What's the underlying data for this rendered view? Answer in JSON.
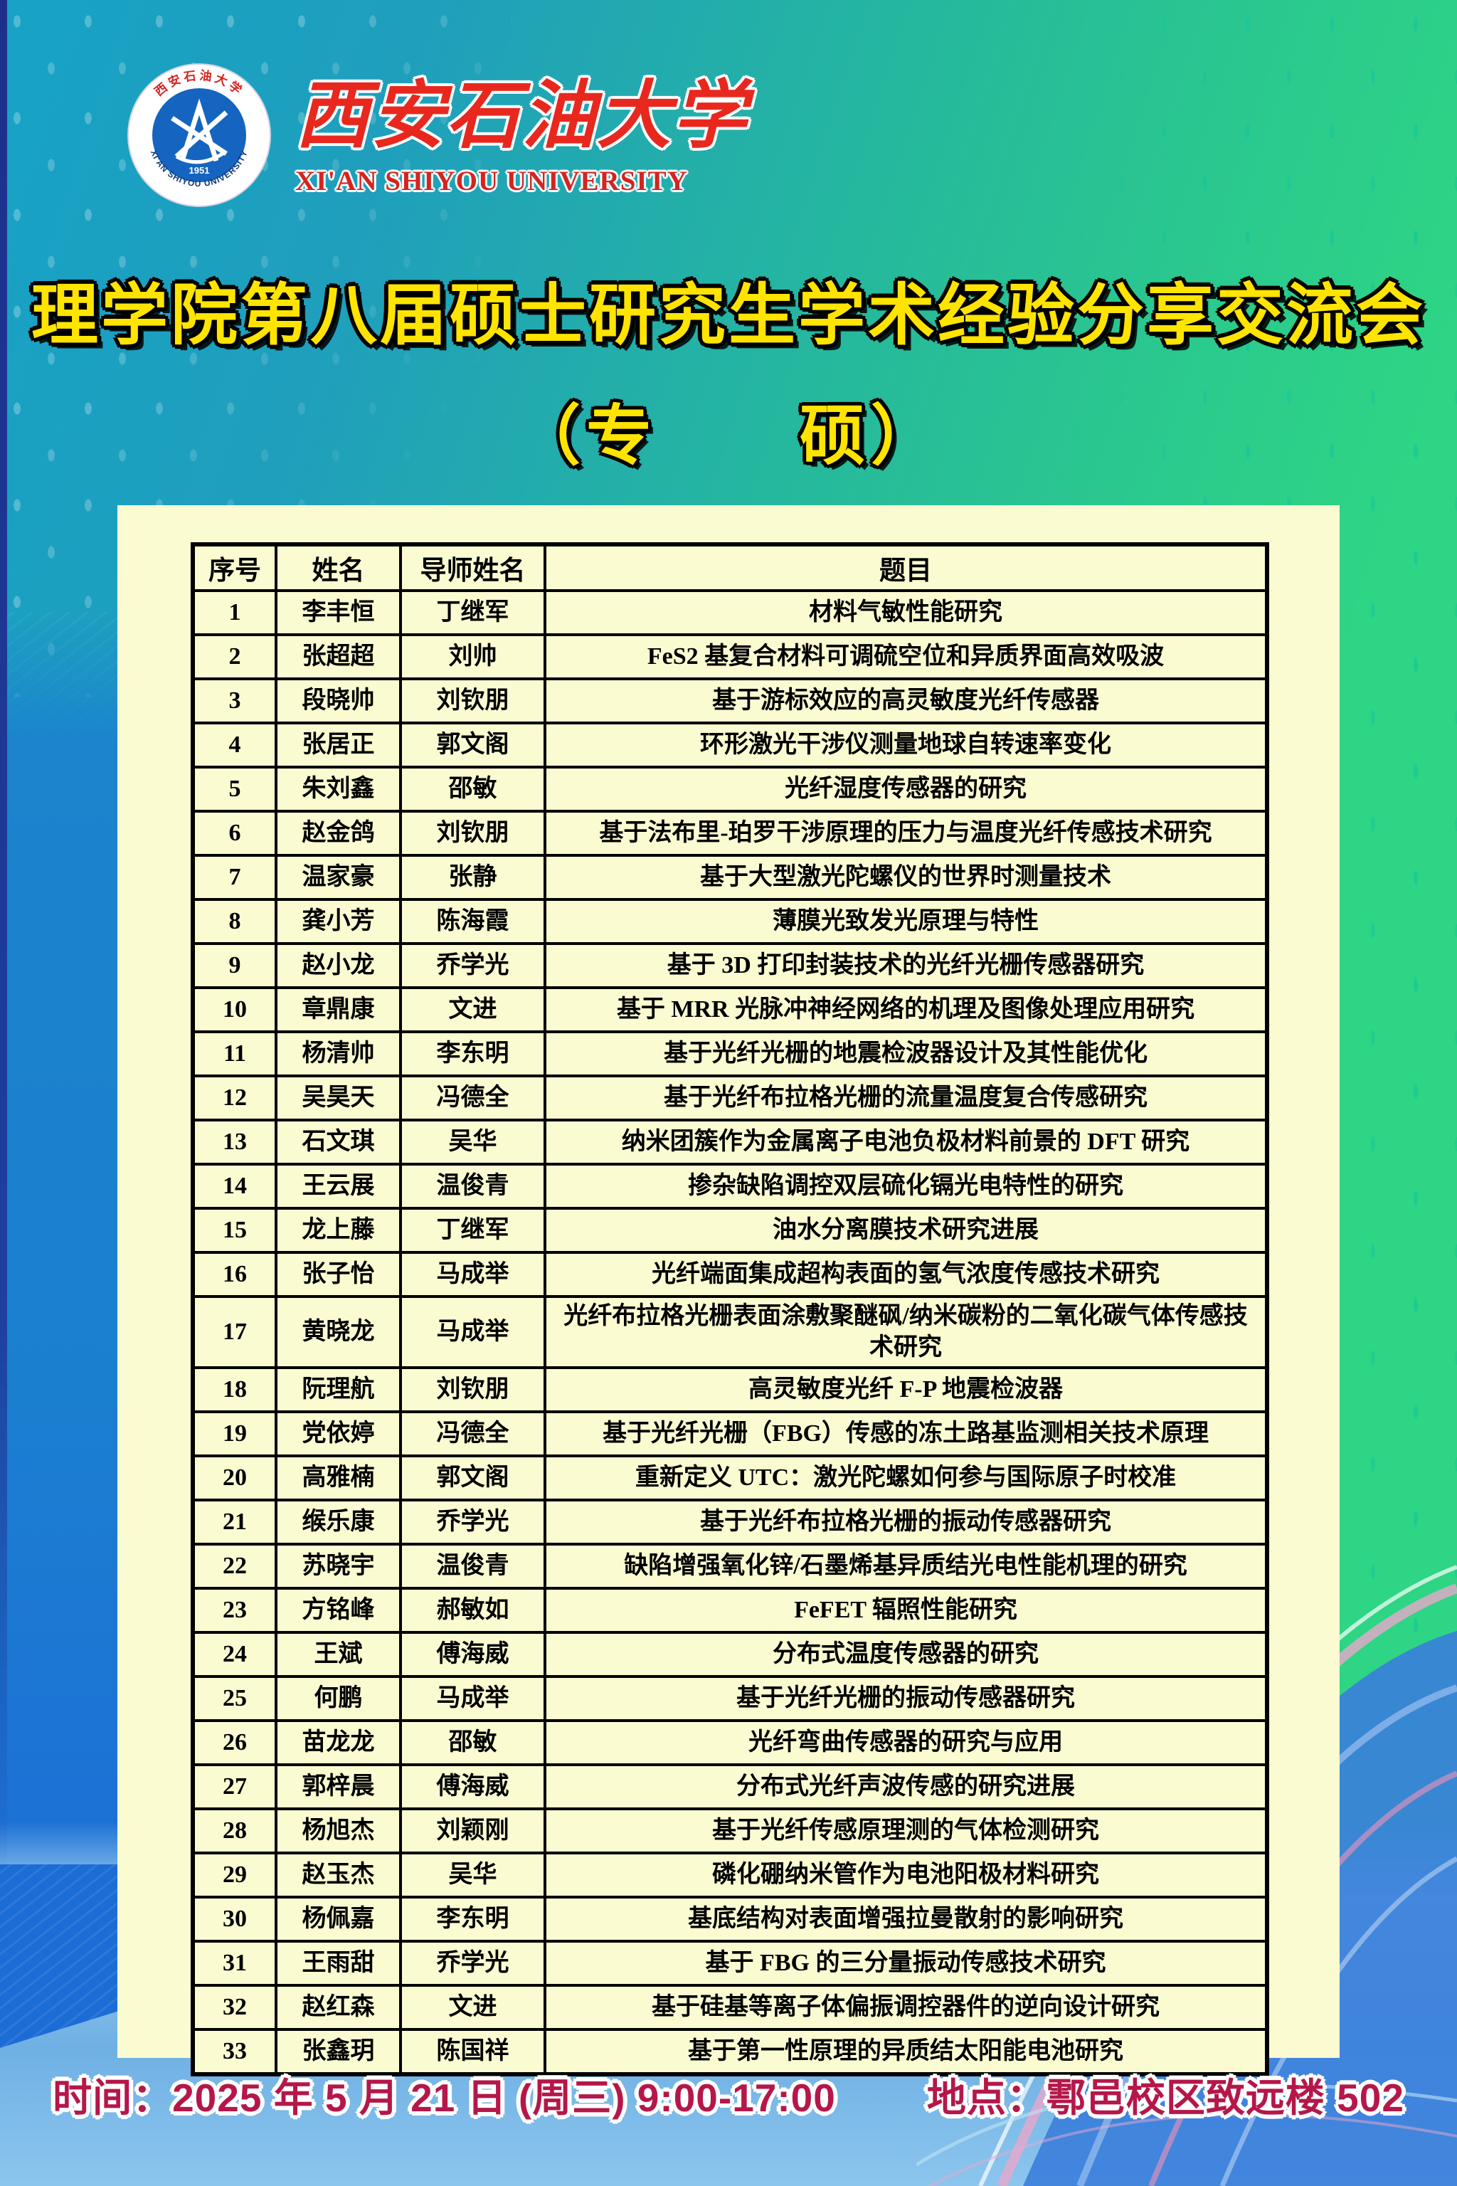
{
  "header": {
    "logo": {
      "ring_text_top": "西安石油大学",
      "ring_text_bottom": "XI'AN SHIYOU UNIVERSITY",
      "badge_year": "1951"
    },
    "university_name_zh": "西安石油大学",
    "university_name_en": "XI'AN SHIYOU UNIVERSITY"
  },
  "title": {
    "main": "理学院第八届硕士研究生学术经验分享交流会",
    "subtitle": "（专　　硕）"
  },
  "table": {
    "columns": [
      "序号",
      "姓名",
      "导师姓名",
      "题目"
    ],
    "rows": [
      {
        "no": "1",
        "name": "李丰恒",
        "advisor": "丁继军",
        "topic": "材料气敏性能研究"
      },
      {
        "no": "2",
        "name": "张超超",
        "advisor": "刘帅",
        "topic": "FeS2 基复合材料可调硫空位和异质界面高效吸波"
      },
      {
        "no": "3",
        "name": "段晓帅",
        "advisor": "刘钦朋",
        "topic": "基于游标效应的高灵敏度光纤传感器"
      },
      {
        "no": "4",
        "name": "张居正",
        "advisor": "郭文阁",
        "topic": "环形激光干涉仪测量地球自转速率变化"
      },
      {
        "no": "5",
        "name": "朱刘鑫",
        "advisor": "邵敏",
        "topic": "光纤湿度传感器的研究"
      },
      {
        "no": "6",
        "name": "赵金鸽",
        "advisor": "刘钦朋",
        "topic": "基于法布里-珀罗干涉原理的压力与温度光纤传感技术研究"
      },
      {
        "no": "7",
        "name": "温家豪",
        "advisor": "张静",
        "topic": "基于大型激光陀螺仪的世界时测量技术"
      },
      {
        "no": "8",
        "name": "龚小芳",
        "advisor": "陈海霞",
        "topic": "薄膜光致发光原理与特性"
      },
      {
        "no": "9",
        "name": "赵小龙",
        "advisor": "乔学光",
        "topic": "基于 3D 打印封装技术的光纤光栅传感器研究"
      },
      {
        "no": "10",
        "name": "章鼎康",
        "advisor": "文进",
        "topic": "基于 MRR 光脉冲神经网络的机理及图像处理应用研究"
      },
      {
        "no": "11",
        "name": "杨清帅",
        "advisor": "李东明",
        "topic": "基于光纤光栅的地震检波器设计及其性能优化"
      },
      {
        "no": "12",
        "name": "吴昊天",
        "advisor": "冯德全",
        "topic": "基于光纤布拉格光栅的流量温度复合传感研究"
      },
      {
        "no": "13",
        "name": "石文琪",
        "advisor": "吴华",
        "topic": "纳米团簇作为金属离子电池负极材料前景的 DFT 研究"
      },
      {
        "no": "14",
        "name": "王云展",
        "advisor": "温俊青",
        "topic": "掺杂缺陷调控双层硫化镉光电特性的研究"
      },
      {
        "no": "15",
        "name": "龙上藤",
        "advisor": "丁继军",
        "topic": "油水分离膜技术研究进展"
      },
      {
        "no": "16",
        "name": "张子怡",
        "advisor": "马成举",
        "topic": "光纤端面集成超构表面的氢气浓度传感技术研究"
      },
      {
        "no": "17",
        "name": "黄晓龙",
        "advisor": "马成举",
        "topic": "光纤布拉格光栅表面涂敷聚醚砜/纳米碳粉的二氧化碳气体传感技术研究"
      },
      {
        "no": "18",
        "name": "阮理航",
        "advisor": "刘钦朋",
        "topic": "高灵敏度光纤 F-P 地震检波器"
      },
      {
        "no": "19",
        "name": "党依婷",
        "advisor": "冯德全",
        "topic": "基于光纤光栅（FBG）传感的冻土路基监测相关技术原理"
      },
      {
        "no": "20",
        "name": "高雅楠",
        "advisor": "郭文阁",
        "topic": "重新定义 UTC：激光陀螺如何参与国际原子时校准"
      },
      {
        "no": "21",
        "name": "缑乐康",
        "advisor": "乔学光",
        "topic": "基于光纤布拉格光栅的振动传感器研究"
      },
      {
        "no": "22",
        "name": "苏晓宇",
        "advisor": "温俊青",
        "topic": "缺陷增强氧化锌/石墨烯基异质结光电性能机理的研究"
      },
      {
        "no": "23",
        "name": "方铭峰",
        "advisor": "郝敏如",
        "topic": "FeFET 辐照性能研究"
      },
      {
        "no": "24",
        "name": "王斌",
        "advisor": "傅海威",
        "topic": "分布式温度传感器的研究"
      },
      {
        "no": "25",
        "name": "何鹏",
        "advisor": "马成举",
        "topic": "基于光纤光栅的振动传感器研究"
      },
      {
        "no": "26",
        "name": "苗龙龙",
        "advisor": "邵敏",
        "topic": "光纤弯曲传感器的研究与应用"
      },
      {
        "no": "27",
        "name": "郭梓晨",
        "advisor": "傅海威",
        "topic": "分布式光纤声波传感的研究进展"
      },
      {
        "no": "28",
        "name": "杨旭杰",
        "advisor": "刘颖刚",
        "topic": "基于光纤传感原理测的气体检测研究"
      },
      {
        "no": "29",
        "name": "赵玉杰",
        "advisor": "吴华",
        "topic": "磷化硼纳米管作为电池阳极材料研究"
      },
      {
        "no": "30",
        "name": "杨佩嘉",
        "advisor": "李东明",
        "topic": "基底结构对表面增强拉曼散射的影响研究"
      },
      {
        "no": "31",
        "name": "王雨甜",
        "advisor": "乔学光",
        "topic": "基于 FBG 的三分量振动传感技术研究"
      },
      {
        "no": "32",
        "name": "赵红森",
        "advisor": "文进",
        "topic": "基于硅基等离子体偏振调控器件的逆向设计研究"
      },
      {
        "no": "33",
        "name": "张鑫玥",
        "advisor": "陈国祥",
        "topic": "基于第一性原理的异质结太阳能电池研究"
      }
    ]
  },
  "footer": {
    "time_label": "时间：2025 年 5 月 21 日 (周三) 9:00-17:00",
    "location_label": "地点：鄠邑校区致远楼 502"
  },
  "colors": {
    "title_yellow": "#ffe400",
    "heading_red": "#e8281e",
    "footer_red": "#b5174a",
    "panel_cream": "#fbfbd2",
    "table_border": "#000000",
    "bg_teal": "#17a2c6",
    "bg_green": "#2ed584",
    "bg_blue": "#1b7fd0",
    "bottom_sky": "#8cc6ee",
    "navy_edge": "#1d2f8a",
    "logo_blue": "#1565c0"
  }
}
